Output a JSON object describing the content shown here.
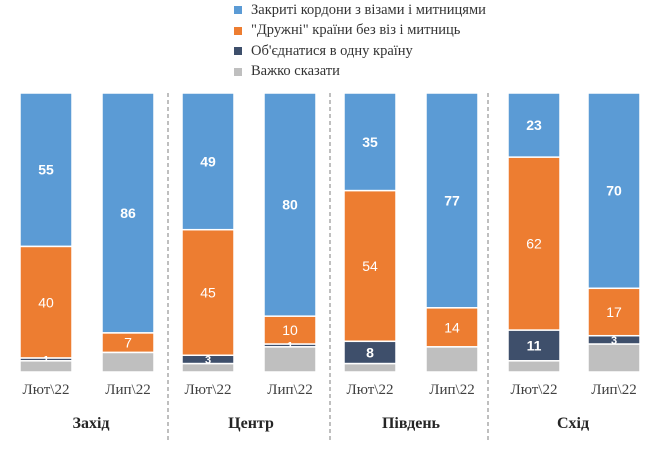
{
  "colors": {
    "closed": "#5b9bd5",
    "friendly": "#ed7d31",
    "unite": "#3e4f6b",
    "hard": "#bfbfbf",
    "divider": "#7f7f7f"
  },
  "chart_data": {
    "type": "bar",
    "stacked": true,
    "ylim": [
      0,
      100
    ],
    "legend_position": "top",
    "series": [
      {
        "key": "closed",
        "name": "Закриті кордони з візами і митницями"
      },
      {
        "key": "friendly",
        "name": "\"Дружні\" країни без віз і митниць"
      },
      {
        "key": "unite",
        "name": "Об'єднатися в одну країну"
      },
      {
        "key": "hard",
        "name": "Важко сказати"
      }
    ],
    "groups": [
      {
        "name": "Захід",
        "bars": [
          {
            "label": "Лют\\22",
            "values": {
              "closed": 55,
              "friendly": 40,
              "unite": 1,
              "hard": 4
            },
            "labels": {
              "closed": "55",
              "friendly": "40",
              "unite": "1",
              "hard": ""
            }
          },
          {
            "label": "Лип\\22",
            "values": {
              "closed": 86,
              "friendly": 7,
              "unite": 0,
              "hard": 7
            },
            "labels": {
              "closed": "86",
              "friendly": "7",
              "unite": "",
              "hard": ""
            }
          }
        ]
      },
      {
        "name": "Центр",
        "bars": [
          {
            "label": "Лют\\22",
            "values": {
              "closed": 49,
              "friendly": 45,
              "unite": 3,
              "hard": 3
            },
            "labels": {
              "closed": "49",
              "friendly": "45",
              "unite": "3",
              "hard": ""
            }
          },
          {
            "label": "Лип\\22",
            "values": {
              "closed": 80,
              "friendly": 10,
              "unite": 1,
              "hard": 9
            },
            "labels": {
              "closed": "80",
              "friendly": "10",
              "unite": "1",
              "hard": ""
            }
          }
        ]
      },
      {
        "name": "Південь",
        "bars": [
          {
            "label": "Лют\\22",
            "values": {
              "closed": 35,
              "friendly": 54,
              "unite": 8,
              "hard": 3
            },
            "labels": {
              "closed": "35",
              "friendly": "54",
              "unite": "8",
              "hard": ""
            }
          },
          {
            "label": "Лип\\22",
            "values": {
              "closed": 77,
              "friendly": 14,
              "unite": 0,
              "hard": 9
            },
            "labels": {
              "closed": "77",
              "friendly": "14",
              "unite": "",
              "hard": ""
            }
          }
        ]
      },
      {
        "name": "Схід",
        "bars": [
          {
            "label": "Лют\\22",
            "values": {
              "closed": 23,
              "friendly": 62,
              "unite": 11,
              "hard": 4
            },
            "labels": {
              "closed": "23",
              "friendly": "62",
              "unite": "11",
              "hard": ""
            }
          },
          {
            "label": "Лип\\22",
            "values": {
              "closed": 70,
              "friendly": 17,
              "unite": 3,
              "hard": 10
            },
            "labels": {
              "closed": "70",
              "friendly": "17",
              "unite": "3",
              "hard": ""
            }
          }
        ]
      }
    ]
  }
}
